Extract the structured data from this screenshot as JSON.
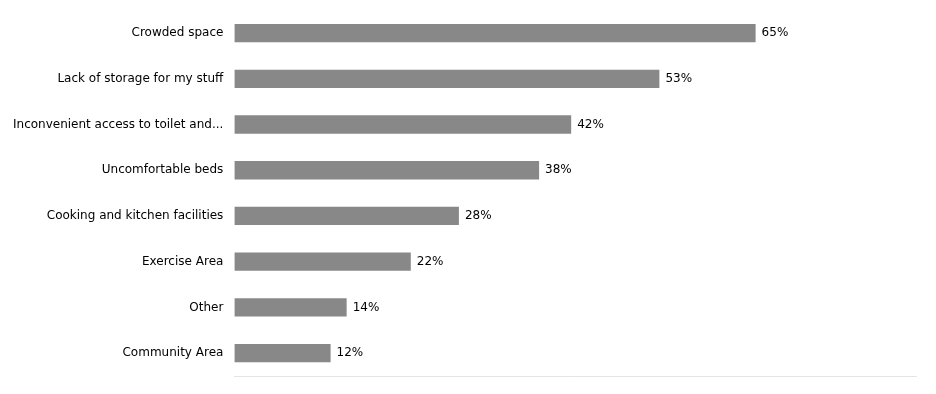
{
  "chart_data": {
    "type": "bar",
    "orientation": "horizontal",
    "categories": [
      "Community Area",
      "Other",
      "Exercise Area",
      "Cooking and kitchen facilities",
      "Uncomfortable beds",
      "Inconvenient access to toilet and...",
      "Lack of storage for my stuff",
      "Crowded space"
    ],
    "values": [
      12,
      14,
      22,
      28,
      38,
      42,
      53,
      65
    ],
    "value_labels": [
      "12%",
      "14%",
      "22%",
      "28%",
      "38%",
      "42%",
      "53%",
      "65%"
    ],
    "color": "#888888",
    "xlim": [
      0,
      85
    ],
    "data_labels": true,
    "tick_labels": "y",
    "grid": false
  }
}
